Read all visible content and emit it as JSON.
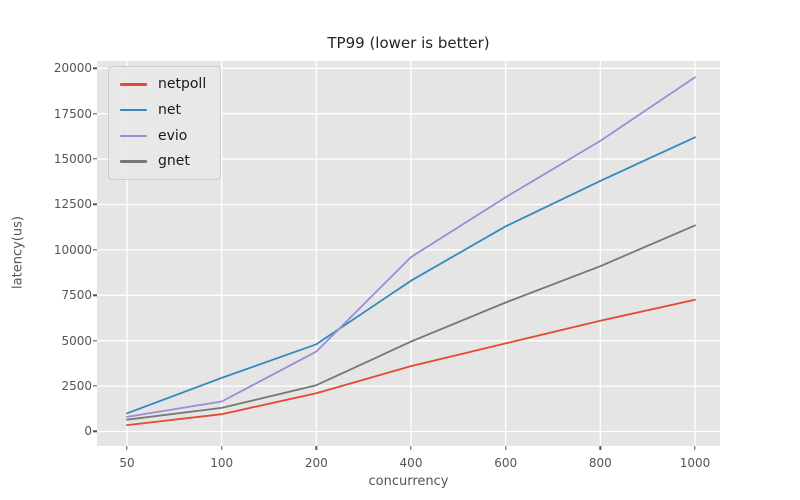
{
  "title": "TP99 (lower is better)",
  "chart_data": {
    "type": "line",
    "title": "TP99 (lower is better)",
    "xlabel": "concurrency",
    "ylabel": "latency(us)",
    "x": [
      50,
      100,
      200,
      400,
      600,
      800,
      1000
    ],
    "x_spacing": "even-categorical",
    "series": [
      {
        "name": "netpoll",
        "color": "#E24A33",
        "values": [
          350,
          950,
          2100,
          3600,
          4850,
          6100,
          7250
        ]
      },
      {
        "name": "net",
        "color": "#348ABD",
        "values": [
          1000,
          2950,
          4800,
          8300,
          11300,
          13800,
          16200
        ]
      },
      {
        "name": "evio",
        "color": "#988ED5",
        "values": [
          800,
          1650,
          4400,
          9600,
          12900,
          16000,
          19500
        ]
      },
      {
        "name": "gnet",
        "color": "#777777",
        "values": [
          650,
          1300,
          2550,
          4950,
          7100,
          9100,
          11350
        ]
      }
    ],
    "yticks": [
      0,
      2500,
      5000,
      7500,
      10000,
      12500,
      15000,
      17500,
      20000
    ],
    "ylim": [
      -800,
      20400
    ],
    "grid": true,
    "legend_position": "upper left",
    "style": {
      "axes_bg": "#E5E5E5",
      "grid_color": "#FFFFFF",
      "tick_color": "#555555",
      "title_color": "#262626",
      "line_width": 1.8
    }
  }
}
